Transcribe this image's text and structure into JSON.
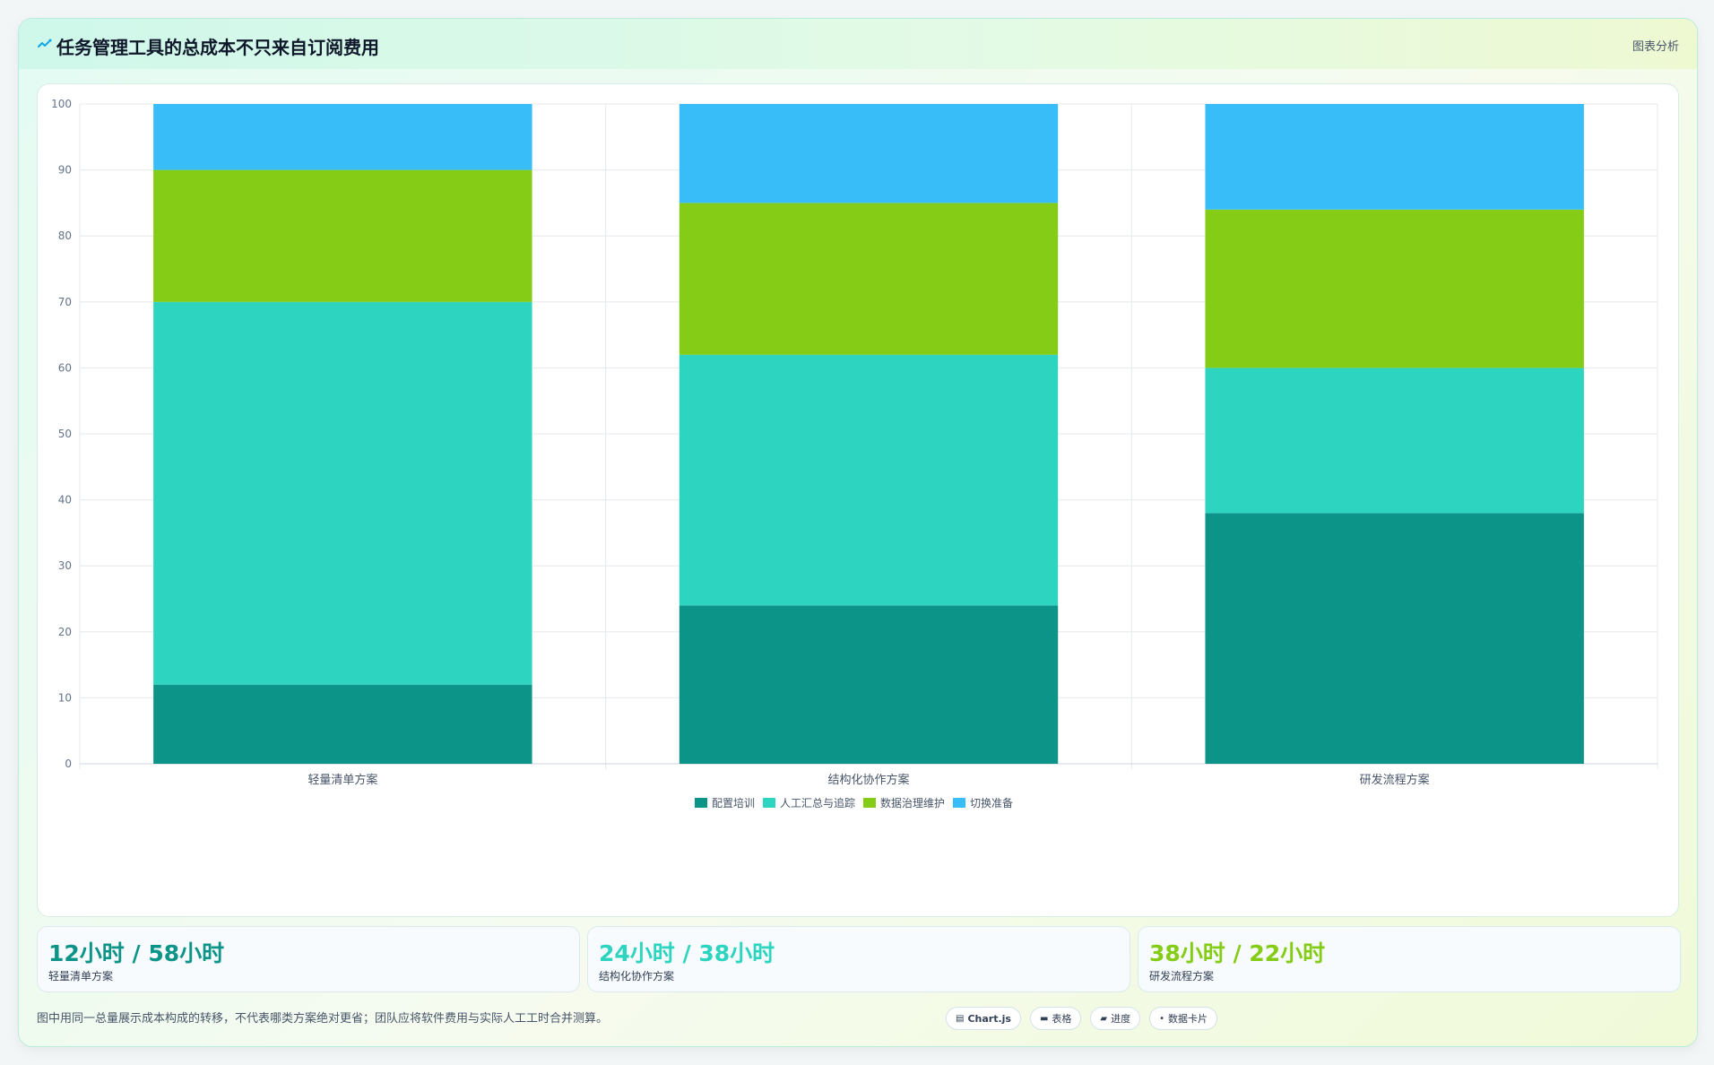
{
  "header": {
    "title": "任务管理工具的总成本不只来自订阅费用",
    "link_label": "图表分析",
    "icon": "sparkline-icon"
  },
  "chart_data": {
    "type": "bar",
    "stacked": true,
    "categories": [
      "轻量清单方案",
      "结构化协作方案",
      "研发流程方案"
    ],
    "series": [
      {
        "name": "配置培训",
        "color": "#0d9488",
        "values": [
          12,
          24,
          38
        ]
      },
      {
        "name": "人工汇总与追踪",
        "color": "#2dd4bf",
        "values": [
          58,
          38,
          22
        ]
      },
      {
        "name": "数据治理维护",
        "color": "#84cc16",
        "values": [
          20,
          23,
          24
        ]
      },
      {
        "name": "切换准备",
        "color": "#38bdf8",
        "values": [
          10,
          15,
          16
        ]
      }
    ],
    "ylim": [
      0,
      100
    ],
    "yticks": [
      0,
      10,
      20,
      30,
      40,
      50,
      60,
      70,
      80,
      90,
      100
    ],
    "grid": true,
    "legend": "bottom",
    "title": "",
    "xlabel": "",
    "ylabel": ""
  },
  "stats": [
    {
      "value": "12小时 / 58小时",
      "label": "轻量清单方案",
      "color": "#0d9488"
    },
    {
      "value": "24小时 / 38小时",
      "label": "结构化协作方案",
      "color": "#2dd4bf"
    },
    {
      "value": "38小时 / 22小时",
      "label": "研发流程方案",
      "color": "#84cc16"
    }
  ],
  "footnote": "图中用同一总量展示成本构成的转移，不代表哪类方案绝对更省；团队应将软件费用与实际人工工时合并测算。",
  "pills": [
    {
      "icon": "chart-icon",
      "label": "Chart.js"
    },
    {
      "icon": "table-icon",
      "label": "表格"
    },
    {
      "icon": "progress-icon",
      "label": "进度"
    },
    {
      "icon": "card-icon",
      "label": "数据卡片"
    }
  ]
}
